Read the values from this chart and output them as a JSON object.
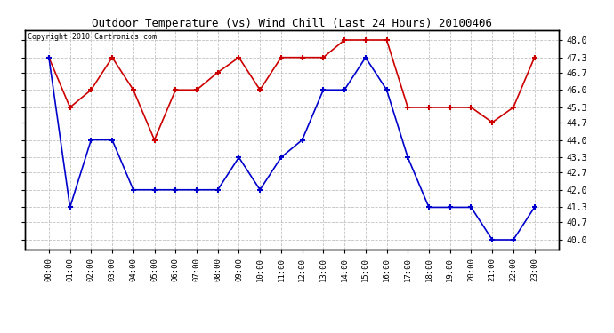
{
  "title": "Outdoor Temperature (vs) Wind Chill (Last 24 Hours) 20100406",
  "copyright": "Copyright 2010 Cartronics.com",
  "x_labels": [
    "00:00",
    "01:00",
    "02:00",
    "03:00",
    "04:00",
    "05:00",
    "06:00",
    "07:00",
    "08:00",
    "09:00",
    "10:00",
    "11:00",
    "12:00",
    "13:00",
    "14:00",
    "15:00",
    "16:00",
    "17:00",
    "18:00",
    "19:00",
    "20:00",
    "21:00",
    "22:00",
    "23:00"
  ],
  "temp_data": [
    47.3,
    45.3,
    46.0,
    47.3,
    46.0,
    44.0,
    46.0,
    46.0,
    46.7,
    47.3,
    46.0,
    47.3,
    47.3,
    47.3,
    48.0,
    48.0,
    48.0,
    45.3,
    45.3,
    45.3,
    45.3,
    44.7,
    45.3,
    47.3
  ],
  "windchill_data": [
    47.3,
    41.3,
    44.0,
    44.0,
    42.0,
    42.0,
    42.0,
    42.0,
    42.0,
    43.3,
    42.0,
    43.3,
    44.0,
    46.0,
    46.0,
    47.3,
    46.0,
    43.3,
    41.3,
    41.3,
    41.3,
    40.0,
    40.0,
    41.3
  ],
  "temp_color": "#cc0000",
  "windchill_color": "#0000cc",
  "grid_color": "#bbbbbb",
  "bg_color": "#ffffff",
  "ylim_min": 39.6,
  "ylim_max": 48.4,
  "yticks": [
    40.0,
    40.7,
    41.3,
    42.0,
    42.7,
    43.3,
    44.0,
    44.7,
    45.3,
    46.0,
    46.7,
    47.3,
    48.0
  ],
  "ytick_labels": [
    "40.0",
    "40.7",
    "41.3",
    "42.0",
    "42.7",
    "43.3",
    "44.0",
    "44.7",
    "45.3",
    "46.0",
    "46.7",
    "47.3",
    "48.0"
  ]
}
